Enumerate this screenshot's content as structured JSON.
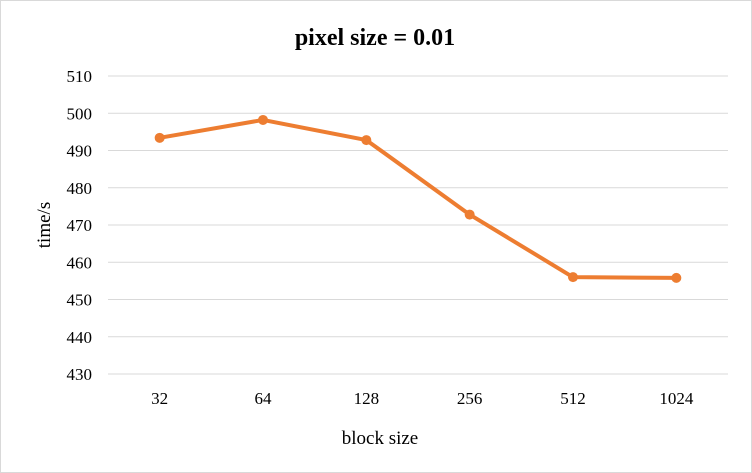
{
  "chart_data": {
    "type": "line",
    "title": "pixel size = 0.01",
    "xlabel": "block size",
    "ylabel": "time/s",
    "categories": [
      "32",
      "64",
      "128",
      "256",
      "512",
      "1024"
    ],
    "series": [
      {
        "values": [
          493.4,
          498.2,
          492.8,
          472.8,
          456.0,
          455.8
        ]
      }
    ],
    "ylim": [
      430,
      510
    ],
    "yticks": [
      430,
      440,
      450,
      460,
      470,
      480,
      490,
      500,
      510
    ],
    "grid": true,
    "legend": "none",
    "colors": {
      "series": "#ed7d31",
      "grid": "#d9d9d9",
      "border": "#d9d9d9"
    }
  }
}
